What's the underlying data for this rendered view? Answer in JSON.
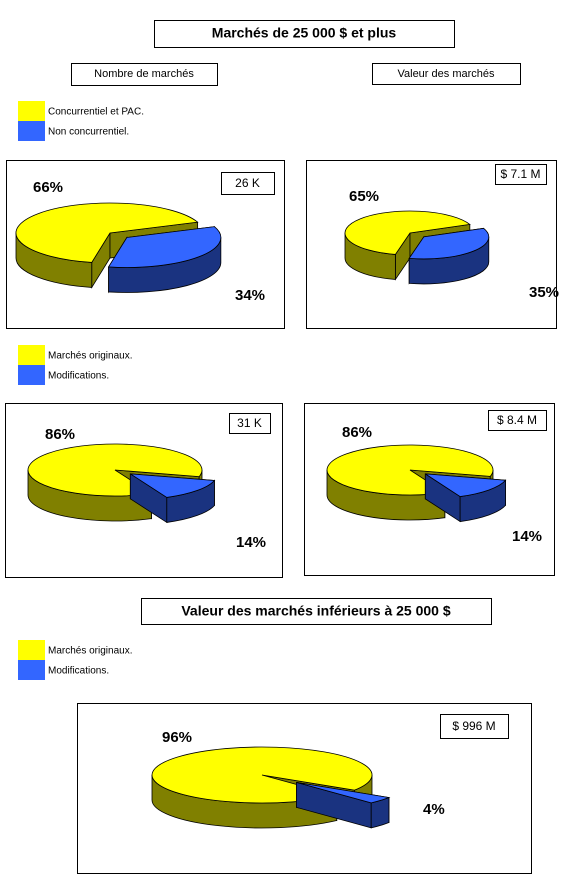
{
  "title": "Marchés de 25 000 $ et plus",
  "columns": [
    "Nombre de marchés",
    "Valeur des marchés"
  ],
  "subtitle": "Valeur des marchés inférieurs à 25 000 $",
  "chart_data": [
    {
      "type": "pie",
      "categories": [
        "Concurrentiel et PAC.",
        "Non concurrentiel."
      ],
      "values": [
        66,
        34
      ],
      "value_labels": [
        "66%",
        "34%"
      ],
      "colors": [
        "#ffff00",
        "#3366ff"
      ],
      "annotation": "26 K"
    },
    {
      "type": "pie",
      "values": [
        65,
        35
      ],
      "value_labels": [
        "65%",
        "35%"
      ],
      "colors": [
        "#ffff00",
        "#3366ff"
      ],
      "annotation": "$ 7.1 M"
    },
    {
      "type": "pie",
      "categories": [
        "Marchés originaux.",
        "Modifications."
      ],
      "values": [
        86,
        14
      ],
      "value_labels": [
        "86%",
        "14%"
      ],
      "colors": [
        "#ffff00",
        "#3366ff"
      ],
      "annotation": "31 K"
    },
    {
      "type": "pie",
      "values": [
        86,
        14
      ],
      "value_labels": [
        "86%",
        "14%"
      ],
      "colors": [
        "#ffff00",
        "#3366ff"
      ],
      "annotation": "$ 8.4 M"
    },
    {
      "type": "pie",
      "categories": [
        "Marchés originaux.",
        "Modifications."
      ],
      "values": [
        96,
        4
      ],
      "value_labels": [
        "96%",
        "4%"
      ],
      "colors": [
        "#ffff00",
        "#3366ff"
      ],
      "annotation": "$ 996 M"
    }
  ]
}
